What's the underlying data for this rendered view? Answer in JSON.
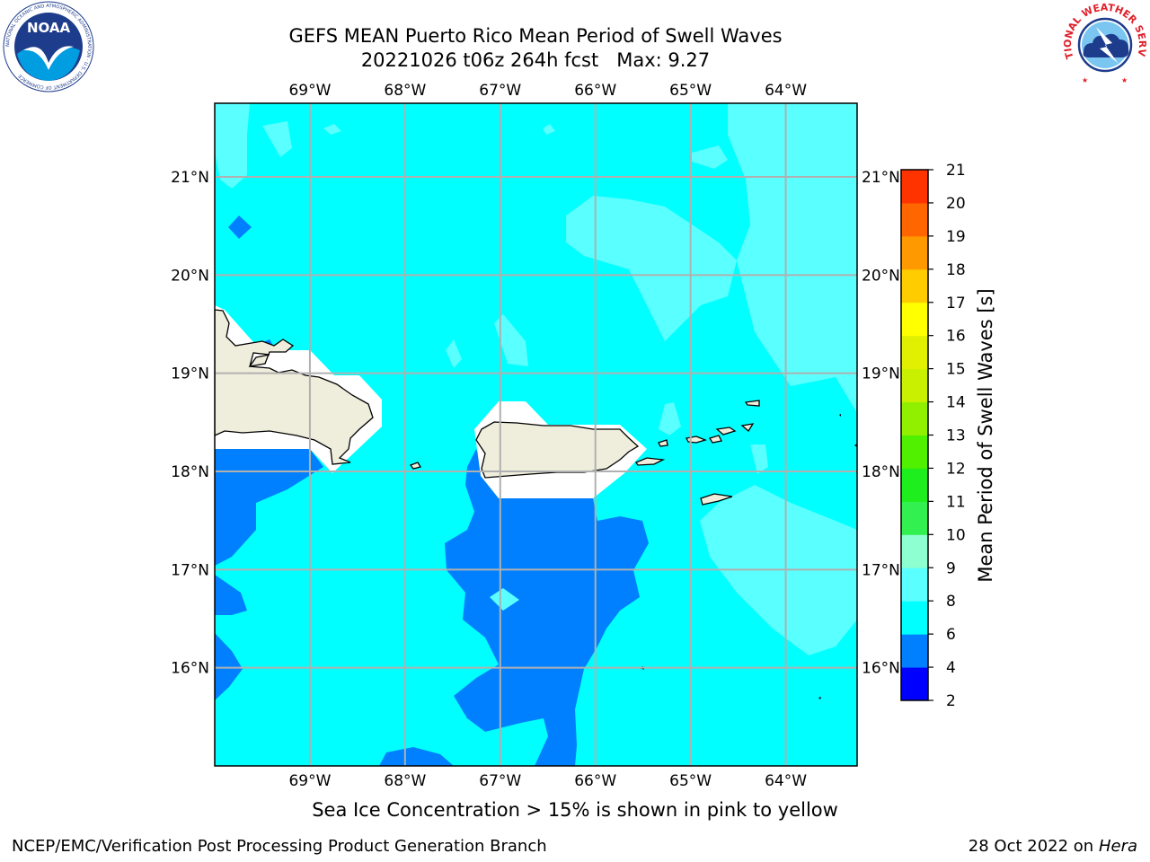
{
  "title_line1": "GEFS MEAN Puerto Rico Mean Period of Swell Waves",
  "title_line2": "20221026 t06z 264h fcst   Max: 9.27",
  "map": {
    "lon_labels": [
      "69°W",
      "68°W",
      "67°W",
      "66°W",
      "65°W",
      "64°W"
    ],
    "lat_labels": [
      "21°N",
      "20°N",
      "19°N",
      "18°N",
      "17°N",
      "16°N"
    ],
    "lon_values": [
      -69,
      -68,
      -67,
      -66,
      -65,
      -64
    ],
    "lat_values": [
      21,
      20,
      19,
      18,
      17,
      16
    ],
    "lon_range": [
      -70,
      -63.25
    ],
    "lat_range": [
      15,
      21.75
    ],
    "grid": true,
    "colors": {
      "ocean_base": "#00ffff",
      "low_period": "#0080ff",
      "high_period": "#5affff",
      "land": "#efeedc",
      "no_data": "#ffffff"
    }
  },
  "colorbar": {
    "label": "Mean Period of Swell Waves [s]",
    "ticks": [
      "2",
      "4",
      "6",
      "8",
      "9",
      "10",
      "11",
      "12",
      "13",
      "14",
      "15",
      "16",
      "17",
      "18",
      "19",
      "20",
      "21"
    ],
    "colors": [
      "#0000ff",
      "#0080ff",
      "#00ffff",
      "#5affff",
      "#8effd0",
      "#32f050",
      "#1eee1e",
      "#50f000",
      "#90f000",
      "#c8f000",
      "#e0f000",
      "#ffff00",
      "#ffcc00",
      "#ff9900",
      "#ff6600",
      "#ff3300",
      "#ff0000"
    ]
  },
  "caption": "Sea Ice Concentration > 15% is shown in pink to yellow",
  "footer": {
    "left": "NCEP/EMC/Verification Post Processing Product Generation Branch",
    "right_date": "28 Oct 2022 on",
    "right_host": "Hera"
  },
  "logos": {
    "noaa_text": "NOAA",
    "noaa_ring": "NATIONAL OCEANIC AND ATMOSPHERIC ADMINISTRATION · U.S. DEPARTMENT OF COMMERCE",
    "nws_ring": "NATIONAL WEATHER SERVICE"
  }
}
